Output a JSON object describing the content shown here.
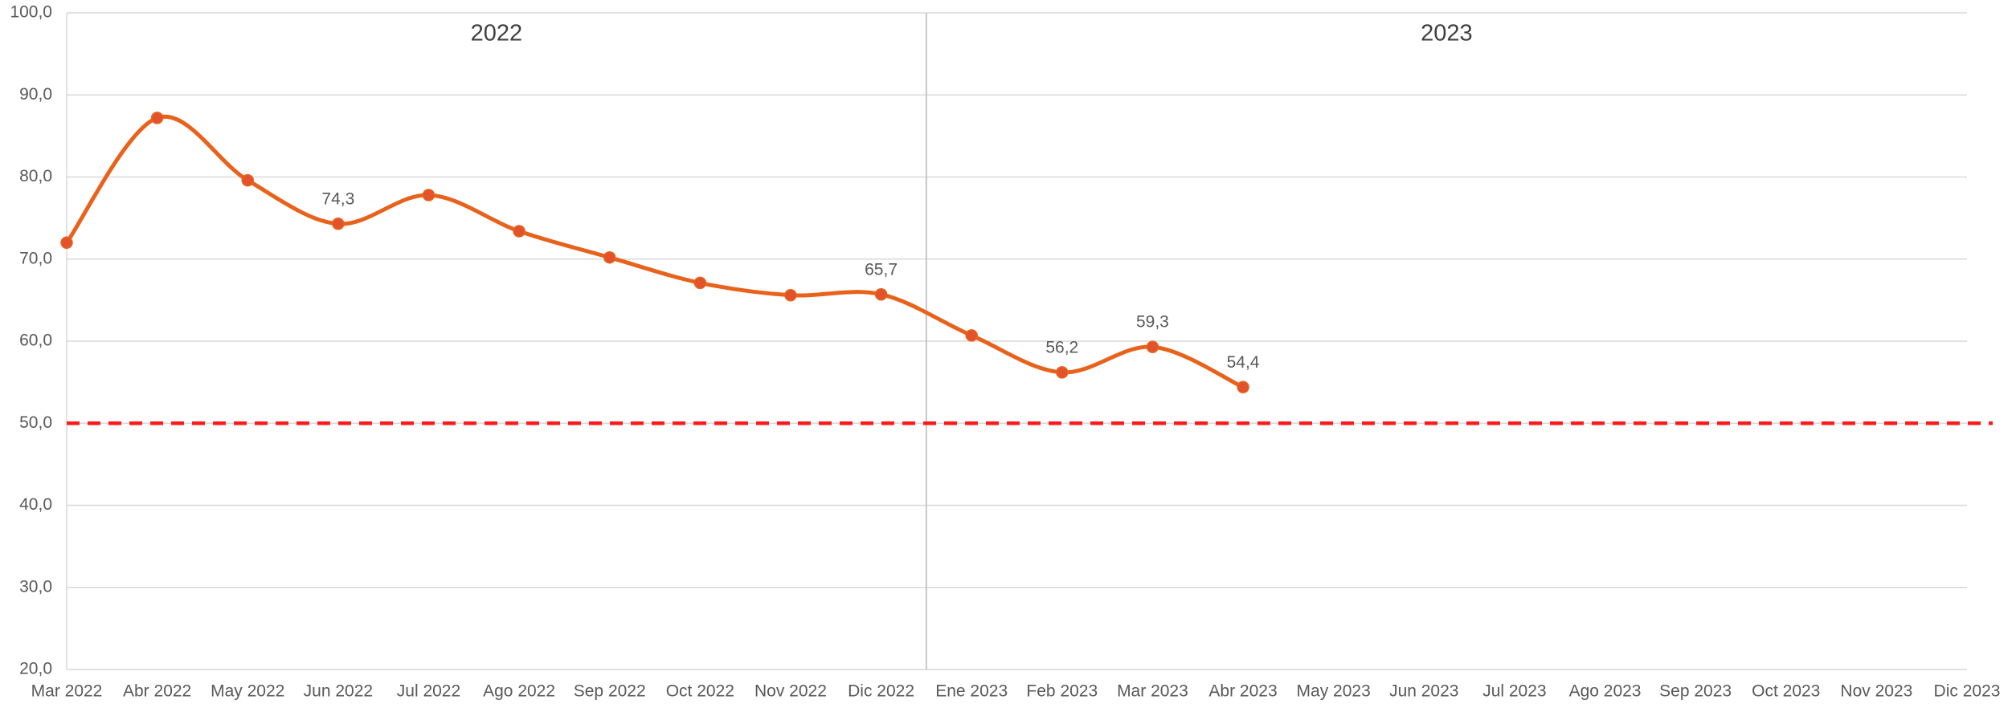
{
  "chart_data": {
    "type": "line",
    "categories": [
      "Mar 2022",
      "Abr 2022",
      "May 2022",
      "Jun 2022",
      "Jul 2022",
      "Ago 2022",
      "Sep 2022",
      "Oct 2022",
      "Nov 2022",
      "Dic 2022",
      "Ene 2023",
      "Feb 2023",
      "Mar 2023",
      "Abr 2023",
      "May 2023",
      "Jun 2023",
      "Jul 2023",
      "Ago 2023",
      "Sep 2023",
      "Oct 2023",
      "Nov 2023",
      "Dic 2023"
    ],
    "values": [
      72.0,
      87.2,
      79.6,
      74.3,
      77.8,
      73.4,
      70.2,
      67.1,
      65.6,
      65.7,
      60.7,
      56.2,
      59.3,
      54.4,
      null,
      null,
      null,
      null,
      null,
      null,
      null,
      null
    ],
    "value_labels": [
      null,
      null,
      null,
      "74,3",
      null,
      null,
      null,
      null,
      null,
      "65,7",
      null,
      "56,2",
      "59,3",
      "54,4",
      null,
      null,
      null,
      null,
      null,
      null,
      null,
      null
    ],
    "color": "#e8621c",
    "marker_color": "#e2532b",
    "ylim": [
      20,
      100
    ],
    "yticks": [
      {
        "value": 20,
        "label": "20,0"
      },
      {
        "value": 30,
        "label": "30,0"
      },
      {
        "value": 40,
        "label": "40,0"
      },
      {
        "value": 50,
        "label": "50,0"
      },
      {
        "value": 60,
        "label": "60,0"
      },
      {
        "value": 70,
        "label": "70,0"
      },
      {
        "value": 80,
        "label": "80,0"
      },
      {
        "value": 90,
        "label": "90,0"
      },
      {
        "value": 100,
        "label": "100,0"
      }
    ],
    "grid": true,
    "reference_line": {
      "value": 50,
      "color": "#ff1a1a",
      "style": "dashed"
    },
    "annotations": [
      "2022",
      "2023"
    ]
  }
}
